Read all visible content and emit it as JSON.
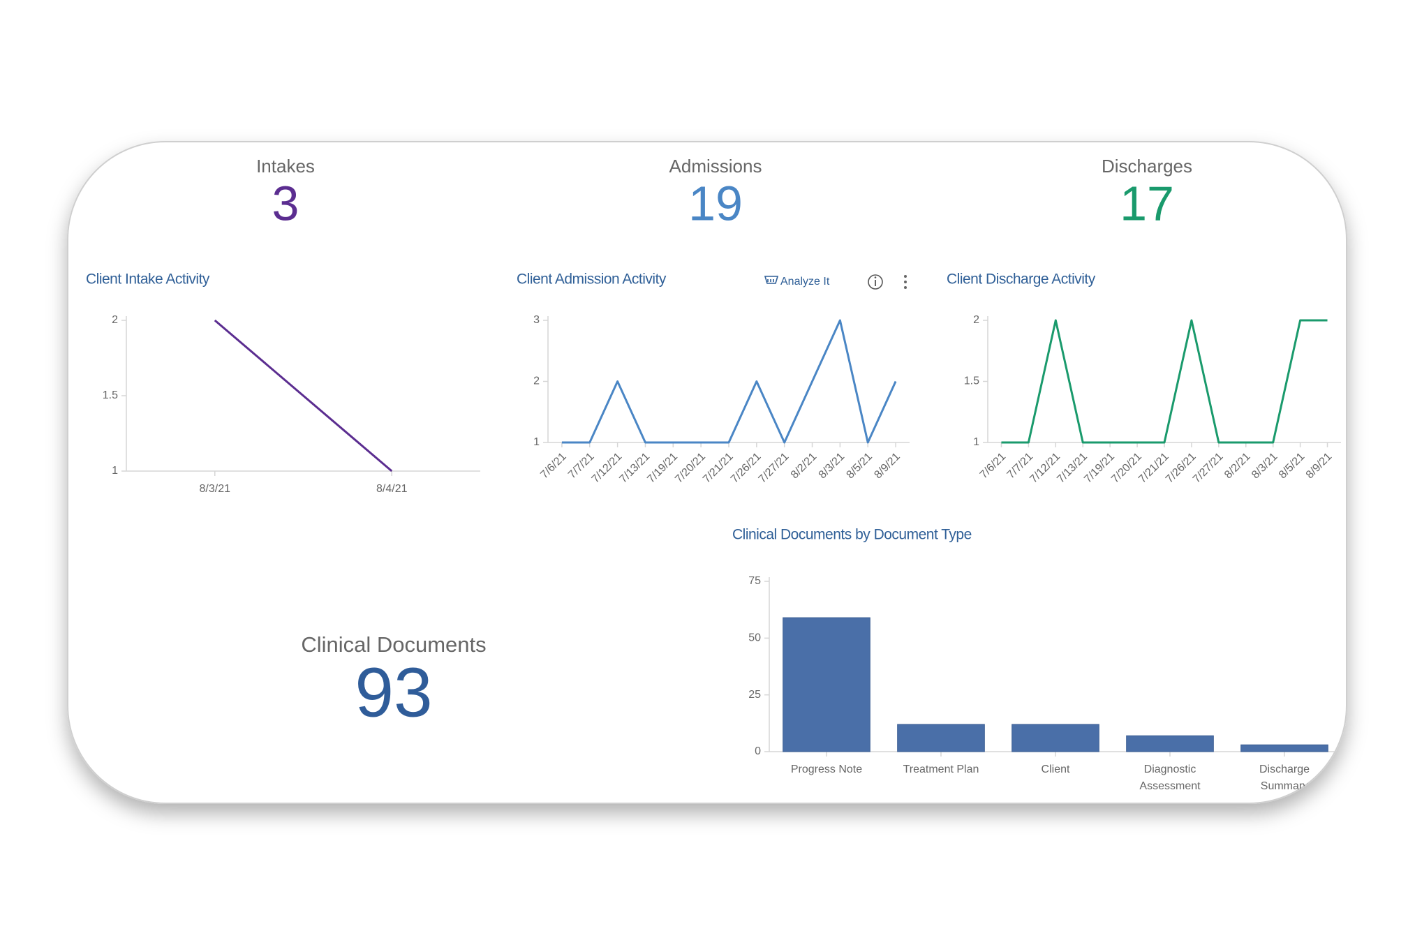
{
  "kpis": [
    {
      "label": "Intakes",
      "value": 3,
      "color": "#5b2d90"
    },
    {
      "label": "Admissions",
      "value": 19,
      "color": "#4a86c5"
    },
    {
      "label": "Discharges",
      "value": 17,
      "color": "#1a9a6c"
    },
    {
      "label": "Clinical Documents",
      "value": 93,
      "color": "#2f5c99"
    }
  ],
  "toolbar": {
    "analyze": "Analyze It"
  },
  "chart_data": [
    {
      "type": "line",
      "title": "Client Intake Activity",
      "categories": [
        "8/3/21",
        "8/4/21"
      ],
      "values": [
        2,
        1
      ],
      "color": "#5b2d90",
      "ylim": [
        1,
        2
      ],
      "yticks": [
        1,
        1.5,
        2
      ]
    },
    {
      "type": "line",
      "title": "Client Admission Activity",
      "categories": [
        "7/6/21",
        "7/7/21",
        "7/12/21",
        "7/13/21",
        "7/19/21",
        "7/20/21",
        "7/21/21",
        "7/26/21",
        "7/27/21",
        "8/2/21",
        "8/3/21",
        "8/5/21",
        "8/9/21"
      ],
      "values": [
        1,
        1,
        2,
        1,
        1,
        1,
        1,
        2,
        1,
        2,
        3,
        1,
        2
      ],
      "color": "#4a86c5",
      "ylim": [
        1,
        3
      ],
      "yticks": [
        1,
        2,
        3
      ]
    },
    {
      "type": "line",
      "title": "Client Discharge Activity",
      "categories": [
        "7/6/21",
        "7/7/21",
        "7/12/21",
        "7/13/21",
        "7/19/21",
        "7/20/21",
        "7/21/21",
        "7/26/21",
        "7/27/21",
        "8/2/21",
        "8/3/21",
        "8/5/21",
        "8/9/21"
      ],
      "values": [
        1,
        1,
        2,
        1,
        1,
        1,
        1,
        2,
        1,
        1,
        1,
        2,
        2
      ],
      "color": "#1a9a6c",
      "ylim": [
        1,
        2
      ],
      "yticks": [
        1,
        1.5,
        2
      ]
    },
    {
      "type": "bar",
      "title": "Clinical Documents by Document Type",
      "categories": [
        "Progress Note",
        "Treatment Plan",
        "Client",
        "Diagnostic Assessment",
        "Discharge Summary"
      ],
      "values": [
        59,
        12,
        12,
        7,
        3
      ],
      "color": "#4a6fa8",
      "ylim": [
        0,
        75
      ],
      "yticks": [
        0,
        25,
        50,
        75
      ]
    }
  ]
}
